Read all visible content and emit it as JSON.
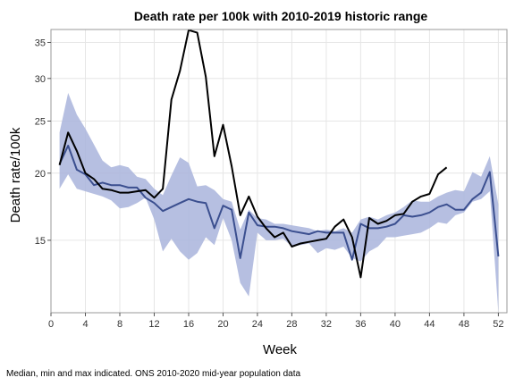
{
  "chart_data": {
    "type": "line",
    "title": "Death rate per 100k with 2010-2019 historic range",
    "xlabel": "Week",
    "ylabel": "Death rate/100k",
    "footnote": "Median, min and max indicated. ONS 2010-2020 mid-year population data",
    "x_ticks": [
      0,
      4,
      8,
      12,
      16,
      20,
      24,
      28,
      32,
      36,
      40,
      44,
      48,
      52
    ],
    "y_ticks": [
      15,
      20,
      25,
      30,
      35
    ],
    "xlim": [
      0,
      53
    ],
    "ylim": [
      11,
      37
    ],
    "y_scale": "log",
    "grid": true,
    "legend": "none",
    "colors": {
      "current_line": "#000000",
      "median_line": "#3b4f8f",
      "range_band": "#a9b4dc"
    },
    "series": [
      {
        "role": "historic_min_max_range",
        "x": [
          1,
          2,
          3,
          4,
          5,
          6,
          7,
          8,
          9,
          10,
          11,
          12,
          13,
          14,
          15,
          16,
          17,
          18,
          19,
          20,
          21,
          22,
          23,
          24,
          25,
          26,
          27,
          28,
          29,
          30,
          31,
          32,
          33,
          34,
          35,
          36,
          37,
          38,
          39,
          40,
          41,
          42,
          43,
          44,
          45,
          46,
          47,
          48,
          49,
          50,
          51,
          52
        ],
        "min": [
          18.7,
          19.9,
          18.7,
          18.5,
          18.3,
          18.1,
          17.8,
          17.2,
          17.3,
          17.6,
          18.0,
          16.4,
          14.3,
          15.1,
          14.3,
          13.8,
          14.2,
          15.2,
          14.7,
          16.5,
          15.0,
          12.5,
          11.8,
          15.5,
          15.0,
          15.0,
          15.1,
          14.6,
          14.7,
          14.8,
          14.2,
          14.5,
          14.4,
          14.6,
          13.9,
          13.7,
          14.3,
          14.6,
          15.2,
          15.2,
          15.3,
          15.4,
          15.5,
          15.8,
          16.2,
          16.1,
          16.7,
          16.9,
          17.7,
          17.9,
          18.5,
          11.0
        ],
        "max": [
          23.8,
          28.2,
          25.7,
          24.2,
          22.6,
          21.1,
          20.5,
          20.7,
          20.5,
          19.7,
          19.5,
          18.7,
          18.2,
          19.8,
          21.4,
          20.9,
          18.9,
          19.0,
          18.6,
          17.9,
          17.7,
          15.7,
          17.1,
          16.5,
          16.4,
          16.1,
          16.1,
          16.0,
          15.9,
          15.8,
          15.6,
          15.7,
          15.6,
          15.8,
          15.5,
          16.4,
          16.6,
          16.4,
          16.7,
          16.9,
          17.3,
          17.8,
          17.7,
          17.7,
          18.1,
          18.4,
          18.6,
          18.5,
          20.1,
          19.7,
          21.5,
          17.5
        ]
      },
      {
        "role": "historic_median",
        "x": [
          1,
          2,
          3,
          4,
          5,
          6,
          7,
          8,
          9,
          10,
          11,
          12,
          13,
          14,
          15,
          16,
          17,
          18,
          19,
          20,
          21,
          22,
          23,
          24,
          25,
          26,
          27,
          28,
          29,
          30,
          31,
          32,
          33,
          34,
          35,
          36,
          37,
          38,
          39,
          40,
          41,
          42,
          43,
          44,
          45,
          46,
          47,
          48,
          49,
          50,
          51,
          52
        ],
        "y": [
          20.8,
          22.5,
          20.3,
          19.9,
          19.0,
          19.2,
          19.0,
          19.0,
          18.8,
          18.8,
          18.0,
          17.6,
          17.0,
          17.3,
          17.6,
          17.9,
          17.7,
          17.6,
          15.8,
          17.4,
          17.1,
          13.9,
          16.9,
          16.0,
          15.9,
          15.9,
          15.8,
          15.6,
          15.5,
          15.4,
          15.6,
          15.5,
          15.5,
          15.5,
          13.8,
          16.1,
          15.8,
          15.8,
          15.9,
          16.1,
          16.7,
          16.6,
          16.7,
          16.9,
          17.3,
          17.5,
          17.1,
          17.1,
          17.9,
          18.4,
          20.1,
          14.0
        ]
      },
      {
        "role": "current_year",
        "x": [
          1,
          2,
          3,
          4,
          5,
          6,
          7,
          8,
          9,
          10,
          11,
          12,
          13,
          14,
          15,
          16,
          17,
          18,
          19,
          20,
          21,
          22,
          23,
          24,
          25,
          26,
          27,
          28,
          29,
          30,
          31,
          32,
          33,
          34,
          35,
          36,
          37,
          38,
          39,
          40,
          41,
          42,
          43,
          44,
          45,
          46
        ],
        "y": [
          20.7,
          23.8,
          22.0,
          20.0,
          19.5,
          18.7,
          18.6,
          18.4,
          18.4,
          18.5,
          18.6,
          18.0,
          18.7,
          27.4,
          31.0,
          36.9,
          36.5,
          30.2,
          21.5,
          24.6,
          20.6,
          16.7,
          18.1,
          16.6,
          15.8,
          15.2,
          15.5,
          14.6,
          14.8,
          14.9,
          15.0,
          15.1,
          15.9,
          16.4,
          15.2,
          12.8,
          16.5,
          16.1,
          16.3,
          16.7,
          16.8,
          17.7,
          18.1,
          18.3,
          19.9,
          20.5
        ]
      }
    ]
  }
}
